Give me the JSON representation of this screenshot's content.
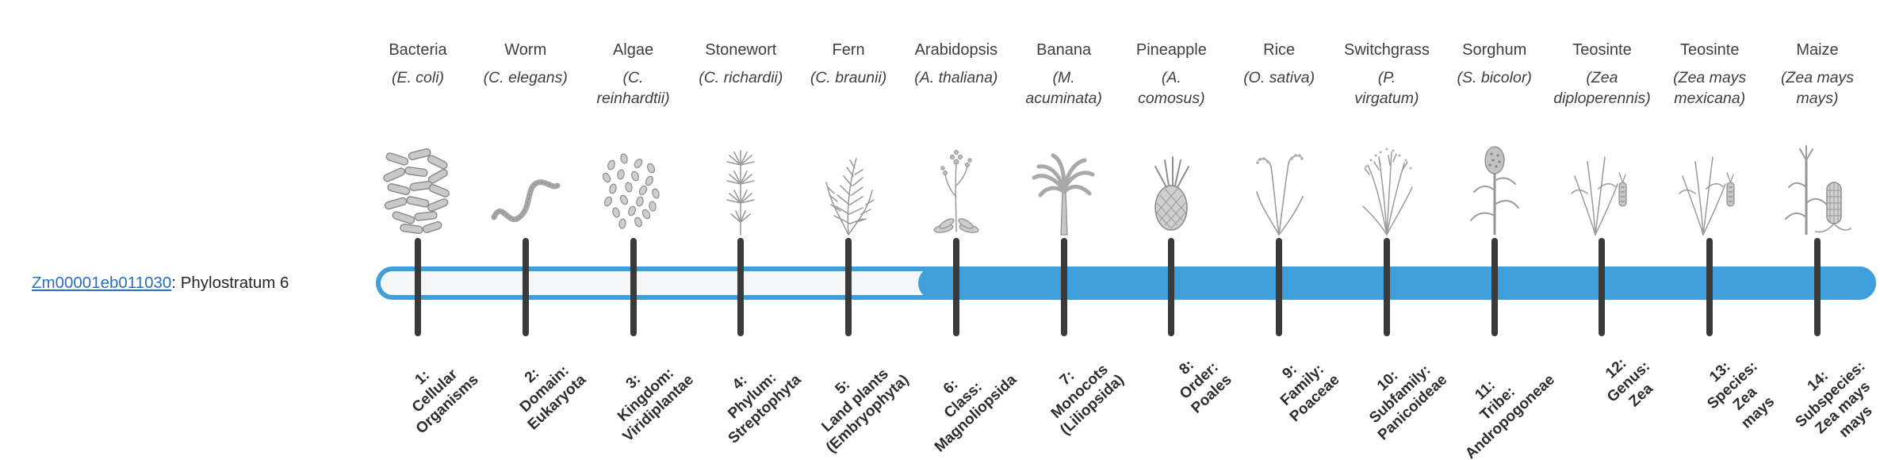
{
  "gene": {
    "id": "Zm00001eb011030",
    "label_suffix": ": Phylostratum 6",
    "phylostratum": 6
  },
  "timeline": {
    "fill_start_phylostratum": 6,
    "tick_count": 14
  },
  "colors": {
    "bar": "#3e9fdb",
    "tick": "#3a3a3a",
    "link": "#2b6fc2",
    "text": "#3d3d3d"
  },
  "organisms": [
    {
      "common_name": "Bacteria",
      "scientific_name": "(E. coli)",
      "icon": "bacteria-icon"
    },
    {
      "common_name": "Worm",
      "scientific_name": "(C. elegans)",
      "icon": "worm-icon"
    },
    {
      "common_name": "Algae",
      "scientific_name": "(C.\nreinhardtii)",
      "icon": "algae-icon"
    },
    {
      "common_name": "Stonewort",
      "scientific_name": "(C. richardii)",
      "icon": "stonewort-icon"
    },
    {
      "common_name": "Fern",
      "scientific_name": "(C. braunii)",
      "icon": "fern-icon"
    },
    {
      "common_name": "Arabidopsis",
      "scientific_name": "(A. thaliana)",
      "icon": "arabidopsis-icon"
    },
    {
      "common_name": "Banana",
      "scientific_name": "(M.\nacuminata)",
      "icon": "banana-icon"
    },
    {
      "common_name": "Pineapple",
      "scientific_name": "(A.\ncomosus)",
      "icon": "pineapple-icon"
    },
    {
      "common_name": "Rice",
      "scientific_name": "(O. sativa)",
      "icon": "rice-icon"
    },
    {
      "common_name": "Switchgrass",
      "scientific_name": "(P.\nvirgatum)",
      "icon": "switchgrass-icon"
    },
    {
      "common_name": "Sorghum",
      "scientific_name": "(S. bicolor)",
      "icon": "sorghum-icon"
    },
    {
      "common_name": "Teosinte",
      "scientific_name": "(Zea\ndiploperennis)",
      "icon": "teosinte-icon"
    },
    {
      "common_name": "Teosinte",
      "scientific_name": "(Zea mays\nmexicana)",
      "icon": "teosinte-icon"
    },
    {
      "common_name": "Maize",
      "scientific_name": "(Zea mays\nmays)",
      "icon": "maize-icon"
    }
  ],
  "phylostrata": [
    {
      "label": "1:\nCellular\nOrganisms"
    },
    {
      "label": "2:\nDomain:\nEukaryota"
    },
    {
      "label": "3:\nKingdom:\nViridiplantae"
    },
    {
      "label": "4:\nPhylum:\nStreptophyta"
    },
    {
      "label": "5:\nLand plants\n(Embryophyta)"
    },
    {
      "label": "6:\nClass:\nMagnoliopsida"
    },
    {
      "label": "7:\nMonocots\n(Liliopsida)"
    },
    {
      "label": "8:\nOrder:\nPoales"
    },
    {
      "label": "9:\nFamily:\nPoaceae"
    },
    {
      "label": "10:\nSubfamily:\nPanicoideae"
    },
    {
      "label": "11:\nTribe:\nAndropogoneae"
    },
    {
      "label": "12:\nGenus:\nZea"
    },
    {
      "label": "13:\nSpecies:\nZea\nmays"
    },
    {
      "label": "14:\nSubspecies:\nZea mays\nmays"
    }
  ]
}
